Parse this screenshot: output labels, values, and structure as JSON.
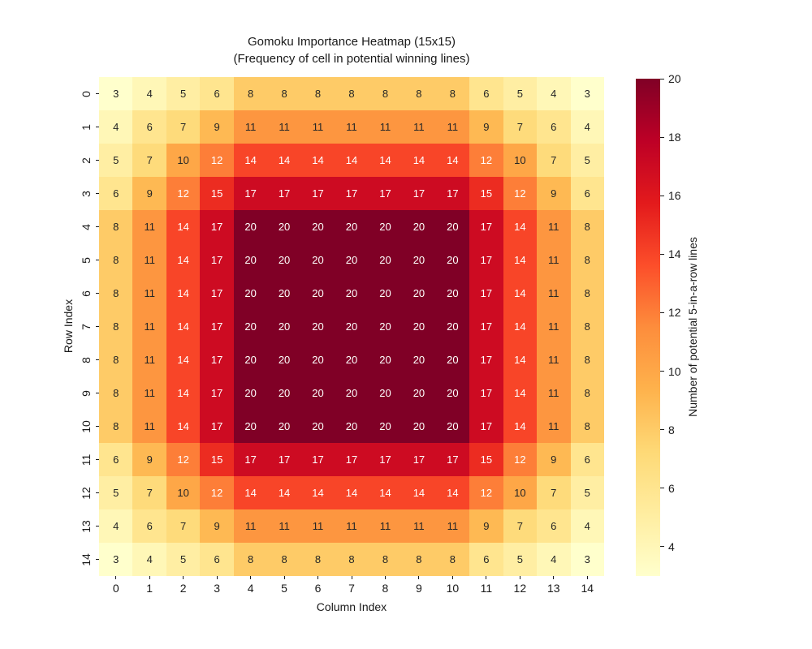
{
  "figure": {
    "title_line1": "Gomoku Importance Heatmap (15x15)",
    "title_line2": "(Frequency of cell in potential winning lines)"
  },
  "chart_data": {
    "type": "heatmap",
    "title": "Gomoku Importance Heatmap (15x15)",
    "subtitle": "(Frequency of cell in potential winning lines)",
    "xlabel": "Column Index",
    "ylabel": "Row Index",
    "x_tick_labels": [
      "0",
      "1",
      "2",
      "3",
      "4",
      "5",
      "6",
      "7",
      "8",
      "9",
      "10",
      "11",
      "12",
      "13",
      "14"
    ],
    "y_tick_labels": [
      "0",
      "1",
      "2",
      "3",
      "4",
      "5",
      "6",
      "7",
      "8",
      "9",
      "10",
      "11",
      "12",
      "13",
      "14"
    ],
    "matrix": [
      [
        3,
        4,
        5,
        6,
        8,
        8,
        8,
        8,
        8,
        8,
        8,
        6,
        5,
        4,
        3
      ],
      [
        4,
        6,
        7,
        9,
        11,
        11,
        11,
        11,
        11,
        11,
        11,
        9,
        7,
        6,
        4
      ],
      [
        5,
        7,
        10,
        12,
        14,
        14,
        14,
        14,
        14,
        14,
        14,
        12,
        10,
        7,
        5
      ],
      [
        6,
        9,
        12,
        15,
        17,
        17,
        17,
        17,
        17,
        17,
        17,
        15,
        12,
        9,
        6
      ],
      [
        8,
        11,
        14,
        17,
        20,
        20,
        20,
        20,
        20,
        20,
        20,
        17,
        14,
        11,
        8
      ],
      [
        8,
        11,
        14,
        17,
        20,
        20,
        20,
        20,
        20,
        20,
        20,
        17,
        14,
        11,
        8
      ],
      [
        8,
        11,
        14,
        17,
        20,
        20,
        20,
        20,
        20,
        20,
        20,
        17,
        14,
        11,
        8
      ],
      [
        8,
        11,
        14,
        17,
        20,
        20,
        20,
        20,
        20,
        20,
        20,
        17,
        14,
        11,
        8
      ],
      [
        8,
        11,
        14,
        17,
        20,
        20,
        20,
        20,
        20,
        20,
        20,
        17,
        14,
        11,
        8
      ],
      [
        8,
        11,
        14,
        17,
        20,
        20,
        20,
        20,
        20,
        20,
        20,
        17,
        14,
        11,
        8
      ],
      [
        8,
        11,
        14,
        17,
        20,
        20,
        20,
        20,
        20,
        20,
        20,
        17,
        14,
        11,
        8
      ],
      [
        6,
        9,
        12,
        15,
        17,
        17,
        17,
        17,
        17,
        17,
        17,
        15,
        12,
        9,
        6
      ],
      [
        5,
        7,
        10,
        12,
        14,
        14,
        14,
        14,
        14,
        14,
        14,
        12,
        10,
        7,
        5
      ],
      [
        4,
        6,
        7,
        9,
        11,
        11,
        11,
        11,
        11,
        11,
        11,
        9,
        7,
        6,
        4
      ],
      [
        3,
        4,
        5,
        6,
        8,
        8,
        8,
        8,
        8,
        8,
        8,
        6,
        5,
        4,
        3
      ]
    ],
    "vmin": 3,
    "vmax": 20,
    "colormap": "YlOrRd",
    "colormap_stops": [
      [
        0.0,
        "#ffffcc"
      ],
      [
        0.125,
        "#ffeda0"
      ],
      [
        0.25,
        "#fed976"
      ],
      [
        0.375,
        "#feb24c"
      ],
      [
        0.5,
        "#fd8d3c"
      ],
      [
        0.625,
        "#fc4e2a"
      ],
      [
        0.75,
        "#e31a1c"
      ],
      [
        0.875,
        "#bd0026"
      ],
      [
        1.0,
        "#800026"
      ]
    ],
    "value_colors": {
      "3": "#ffffcc",
      "4": "#fff7b7",
      "5": "#ffeea3",
      "6": "#ffe58f",
      "7": "#fedb7b",
      "8": "#fecb67",
      "9": "#feb953",
      "10": "#fea747",
      "11": "#fd9640",
      "12": "#fd7e38",
      "14": "#f84528",
      "15": "#ec2c21",
      "17": "#cd0b22",
      "20": "#800026"
    },
    "annotation_dark_color": "#262626",
    "annotation_light_color": "#ffffff",
    "light_text_min_value": 12,
    "grid": false,
    "colorbar": {
      "label": "Number of potential 5-in-a-row lines",
      "tick_labels": [
        "4",
        "6",
        "8",
        "10",
        "12",
        "14",
        "16",
        "18",
        "20"
      ],
      "tick_values": [
        4,
        6,
        8,
        10,
        12,
        14,
        16,
        18,
        20
      ],
      "vmin": 3,
      "vmax": 20
    }
  }
}
